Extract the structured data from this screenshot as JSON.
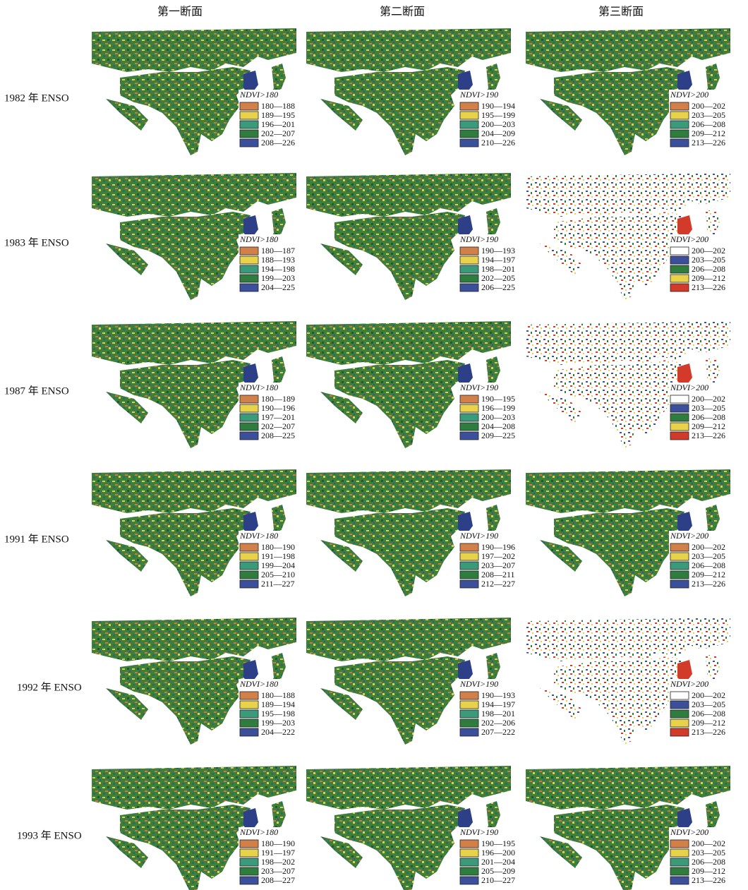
{
  "columns": [
    "第一断面",
    "第二断面",
    "第三断面"
  ],
  "rows": [
    {
      "label": "1982 年 ENSO",
      "panels": [
        {
          "legend_title": "NDVI>180",
          "colors": [
            "#d2804a",
            "#e8d24a",
            "#3a9a7a",
            "#2f7d3e",
            "#3b4f9a"
          ],
          "classes": [
            "180—188",
            "189—195",
            "196—201",
            "202—207",
            "208—226"
          ]
        },
        {
          "legend_title": "NDVI>190",
          "colors": [
            "#d2804a",
            "#e8d24a",
            "#3a9a7a",
            "#2f7d3e",
            "#3b4f9a"
          ],
          "classes": [
            "190—194",
            "195—199",
            "200—203",
            "204—209",
            "210—226"
          ]
        },
        {
          "legend_title": "NDVI>200",
          "colors": [
            "#d2804a",
            "#e8d24a",
            "#3a9a7a",
            "#2f7d3e",
            "#3b4f9a"
          ],
          "classes": [
            "200—202",
            "203—205",
            "206—208",
            "209—212",
            "213—226"
          ]
        }
      ]
    },
    {
      "label": "1983 年 ENSO",
      "panels": [
        {
          "legend_title": "NDVI>180",
          "colors": [
            "#d2804a",
            "#e8d24a",
            "#3a9a7a",
            "#2f7d3e",
            "#3b4f9a"
          ],
          "classes": [
            "180—187",
            "188—193",
            "194—198",
            "199—203",
            "204—225"
          ]
        },
        {
          "legend_title": "NDVI>190",
          "colors": [
            "#d2804a",
            "#e8d24a",
            "#3a9a7a",
            "#2f7d3e",
            "#3b4f9a"
          ],
          "classes": [
            "190—193",
            "194—197",
            "198—201",
            "202—205",
            "206—225"
          ]
        },
        {
          "legend_title": "NDVI>200",
          "colors": [
            "#ffffff",
            "#3b4f9a",
            "#2f7d3e",
            "#e8d24a",
            "#d23a2a"
          ],
          "classes": [
            "200—202",
            "203—205",
            "206—208",
            "209—212",
            "213—226"
          ]
        }
      ]
    },
    {
      "label": "1987 年 ENSO",
      "panels": [
        {
          "legend_title": "NDVI>180",
          "colors": [
            "#d2804a",
            "#e8d24a",
            "#3a9a7a",
            "#2f7d3e",
            "#3b4f9a"
          ],
          "classes": [
            "180—189",
            "190—196",
            "197—201",
            "202—207",
            "208—225"
          ]
        },
        {
          "legend_title": "NDVI>190",
          "colors": [
            "#d2804a",
            "#e8d24a",
            "#3a9a7a",
            "#2f7d3e",
            "#3b4f9a"
          ],
          "classes": [
            "190—195",
            "196—199",
            "200—203",
            "204—208",
            "209—225"
          ]
        },
        {
          "legend_title": "NDVI>200",
          "colors": [
            "#ffffff",
            "#3b4f9a",
            "#2f7d3e",
            "#e8d24a",
            "#d23a2a"
          ],
          "classes": [
            "200—202",
            "203—205",
            "206—208",
            "209—212",
            "213—226"
          ]
        }
      ]
    },
    {
      "label": "1991 年 ENSO",
      "panels": [
        {
          "legend_title": "NDVI>180",
          "colors": [
            "#d2804a",
            "#e8d24a",
            "#3a9a7a",
            "#2f7d3e",
            "#3b4f9a"
          ],
          "classes": [
            "180—190",
            "191—198",
            "199—204",
            "205—210",
            "211—227"
          ]
        },
        {
          "legend_title": "NDVI>190",
          "colors": [
            "#d2804a",
            "#e8d24a",
            "#3a9a7a",
            "#2f7d3e",
            "#3b4f9a"
          ],
          "classes": [
            "190—196",
            "197—202",
            "203—207",
            "208—211",
            "212—227"
          ]
        },
        {
          "legend_title": "NDVI>200",
          "colors": [
            "#d2804a",
            "#e8d24a",
            "#3a9a7a",
            "#2f7d3e",
            "#3b4f9a"
          ],
          "classes": [
            "200—202",
            "203—205",
            "206—208",
            "209—212",
            "213—226"
          ]
        }
      ]
    },
    {
      "label": "1992 年 ENSO",
      "panels": [
        {
          "legend_title": "NDVI>180",
          "colors": [
            "#d2804a",
            "#e8d24a",
            "#3a9a7a",
            "#2f7d3e",
            "#3b4f9a"
          ],
          "classes": [
            "180—188",
            "189—194",
            "195—198",
            "199—203",
            "204—222"
          ]
        },
        {
          "legend_title": "NDVI>190",
          "colors": [
            "#d2804a",
            "#e8d24a",
            "#3a9a7a",
            "#2f7d3e",
            "#3b4f9a"
          ],
          "classes": [
            "190—193",
            "194—197",
            "198—201",
            "202—206",
            "207—222"
          ]
        },
        {
          "legend_title": "NDVI>200",
          "colors": [
            "#ffffff",
            "#3b4f9a",
            "#2f7d3e",
            "#e8d24a",
            "#d23a2a"
          ],
          "classes": [
            "200—202",
            "203—205",
            "206—208",
            "209—212",
            "213—226"
          ]
        }
      ]
    },
    {
      "label": "1993 年 ENSO",
      "panels": [
        {
          "legend_title": "NDVI>180",
          "colors": [
            "#d2804a",
            "#e8d24a",
            "#3a9a7a",
            "#2f7d3e",
            "#3b4f9a"
          ],
          "classes": [
            "180—190",
            "191—197",
            "198—202",
            "203—207",
            "208—227"
          ]
        },
        {
          "legend_title": "NDVI>190",
          "colors": [
            "#d2804a",
            "#e8d24a",
            "#3a9a7a",
            "#2f7d3e",
            "#3b4f9a"
          ],
          "classes": [
            "190—195",
            "196—200",
            "201—204",
            "205—209",
            "210—227"
          ]
        },
        {
          "legend_title": "NDVI>200",
          "colors": [
            "#d2804a",
            "#e8d24a",
            "#3a9a7a",
            "#2f7d3e",
            "#3b4f9a"
          ],
          "classes": [
            "200—202",
            "203—205",
            "206—208",
            "209—212",
            "213—226"
          ]
        }
      ]
    }
  ]
}
